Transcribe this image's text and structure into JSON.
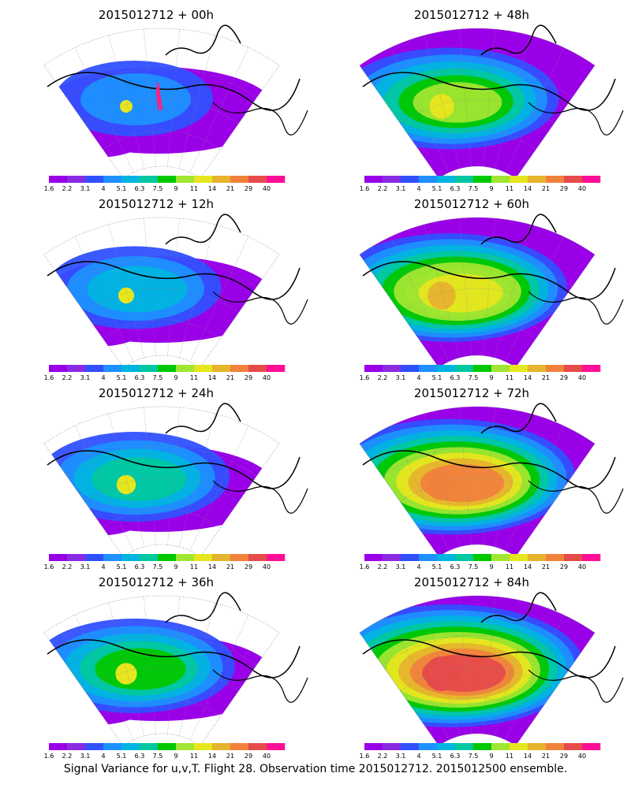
{
  "caption": "Signal Variance for u,v,T. Flight 28. Observation time 2015012712. 2015012500 ensemble.",
  "colorbar": {
    "colors": [
      "#9a00e8",
      "#8a2be2",
      "#3050ff",
      "#1e90ff",
      "#00b4e0",
      "#00c8a0",
      "#00c800",
      "#a0e632",
      "#e6e61e",
      "#e6b42d",
      "#f0823c",
      "#e64b4b",
      "#ff0f96"
    ],
    "tick_labels": [
      "1.6",
      "2.2",
      "3.1",
      "4",
      "5.1",
      "6.3",
      "7.5",
      "9",
      "11",
      "14",
      "21",
      "29",
      "40"
    ]
  },
  "panels": [
    {
      "id": "p00",
      "title": "2015012712 + 00h",
      "column": 0,
      "row": 0,
      "intensity": 0.0,
      "hotspot_color": "#e6e61e",
      "sample_track": true
    },
    {
      "id": "p12",
      "title": "2015012712 + 12h",
      "column": 0,
      "row": 1,
      "intensity": 0.15,
      "hotspot_color": "#e6e61e"
    },
    {
      "id": "p24",
      "title": "2015012712 + 24h",
      "column": 0,
      "row": 2,
      "intensity": 0.3,
      "hotspot_color": "#e6e61e"
    },
    {
      "id": "p36",
      "title": "2015012712 + 36h",
      "column": 0,
      "row": 3,
      "intensity": 0.4,
      "hotspot_color": "#e6e61e"
    },
    {
      "id": "p48",
      "title": "2015012712 + 48h",
      "column": 1,
      "row": 0,
      "intensity": 0.55,
      "hotspot_color": "#e6e61e"
    },
    {
      "id": "p60",
      "title": "2015012712 + 60h",
      "column": 1,
      "row": 1,
      "intensity": 0.7,
      "hotspot_color": "#e6b42d"
    },
    {
      "id": "p72",
      "title": "2015012712 + 72h",
      "column": 1,
      "row": 2,
      "intensity": 0.85,
      "hotspot_color": "#f0823c"
    },
    {
      "id": "p84",
      "title": "2015012712 + 84h",
      "column": 1,
      "row": 3,
      "intensity": 1.0,
      "hotspot_color": "#e64b4b"
    }
  ]
}
